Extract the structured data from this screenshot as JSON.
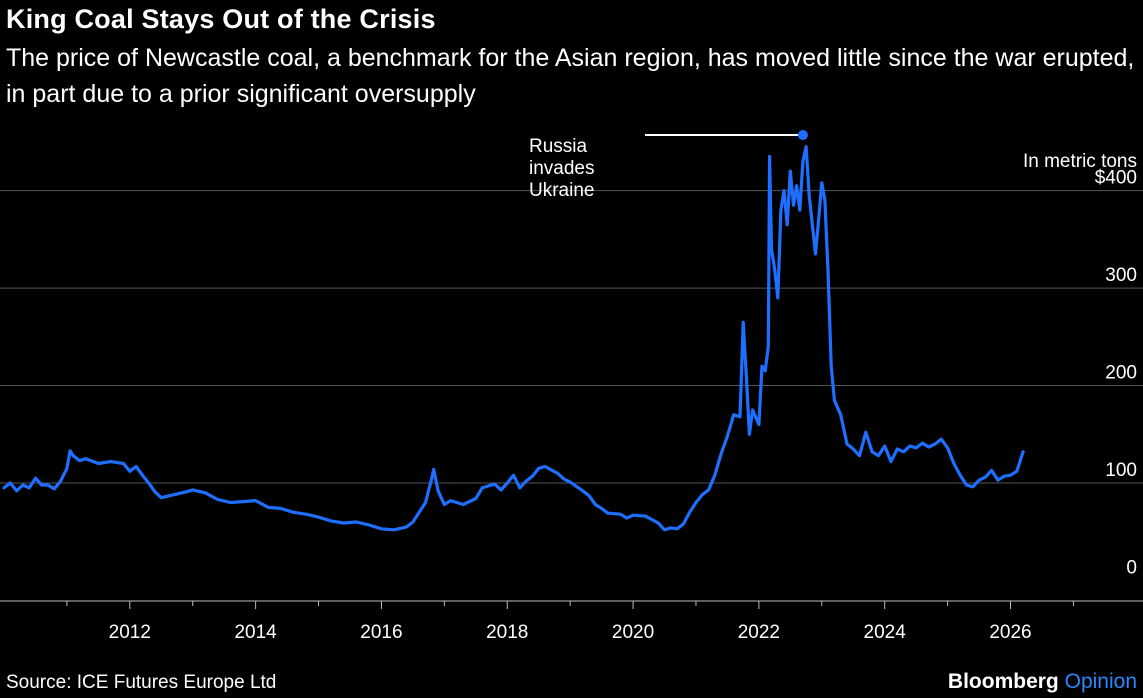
{
  "header": {
    "title": "King Coal Stays Out of the Crisis",
    "subtitle": "The price of Newcastle coal, a benchmark for the Asian region, has moved little since the war erupted, in part due to a prior significant oversupply"
  },
  "footer": {
    "source": "Source: ICE Futures Europe Ltd",
    "brand": "Bloomberg",
    "brand_suffix": "Opinion"
  },
  "colors": {
    "background": "#000000",
    "line": "#1e6fff",
    "text": "#ffffff",
    "grid": "#555555",
    "brand_accent": "#2b87ff"
  },
  "chart_data": {
    "type": "line",
    "unit_label": "In metric tons",
    "y_ticks": [
      {
        "value": 0,
        "label": "0"
      },
      {
        "value": 100,
        "label": "100"
      },
      {
        "value": 200,
        "label": "200"
      },
      {
        "value": 300,
        "label": "300"
      },
      {
        "value": 400,
        "label": "$400"
      }
    ],
    "x_ticks": [
      "2012",
      "2014",
      "2016",
      "2018",
      "2020",
      "2022",
      "2024",
      "2026"
    ],
    "xlim": [
      2010.0,
      2027.2
    ],
    "ylim": [
      -20,
      455
    ],
    "grid": true,
    "annotation": {
      "lines": [
        "Russia",
        "invades",
        "Ukraine"
      ],
      "x": 2022.7,
      "y": 457
    },
    "series": [
      {
        "points": [
          [
            2010.0,
            95
          ],
          [
            2010.1,
            100
          ],
          [
            2010.2,
            92
          ],
          [
            2010.3,
            98
          ],
          [
            2010.4,
            95
          ],
          [
            2010.5,
            105
          ],
          [
            2010.6,
            98
          ],
          [
            2010.7,
            98
          ],
          [
            2010.8,
            94
          ],
          [
            2010.9,
            102
          ],
          [
            2011.0,
            115
          ],
          [
            2011.05,
            133
          ],
          [
            2011.1,
            128
          ],
          [
            2011.2,
            123
          ],
          [
            2011.3,
            125
          ],
          [
            2011.5,
            120
          ],
          [
            2011.7,
            122
          ],
          [
            2011.9,
            120
          ],
          [
            2012.0,
            112
          ],
          [
            2012.1,
            117
          ],
          [
            2012.2,
            108
          ],
          [
            2012.3,
            100
          ],
          [
            2012.4,
            91
          ],
          [
            2012.5,
            85
          ],
          [
            2012.7,
            88
          ],
          [
            2012.9,
            91
          ],
          [
            2013.0,
            93
          ],
          [
            2013.2,
            90
          ],
          [
            2013.4,
            83
          ],
          [
            2013.6,
            80
          ],
          [
            2013.8,
            81
          ],
          [
            2014.0,
            82
          ],
          [
            2014.2,
            75
          ],
          [
            2014.4,
            74
          ],
          [
            2014.6,
            70
          ],
          [
            2014.8,
            68
          ],
          [
            2015.0,
            65
          ],
          [
            2015.2,
            61
          ],
          [
            2015.4,
            59
          ],
          [
            2015.6,
            60
          ],
          [
            2015.8,
            57
          ],
          [
            2016.0,
            53
          ],
          [
            2016.2,
            52
          ],
          [
            2016.4,
            55
          ],
          [
            2016.5,
            60
          ],
          [
            2016.6,
            70
          ],
          [
            2016.7,
            80
          ],
          [
            2016.8,
            105
          ],
          [
            2016.83,
            114
          ],
          [
            2016.9,
            92
          ],
          [
            2017.0,
            78
          ],
          [
            2017.1,
            82
          ],
          [
            2017.3,
            78
          ],
          [
            2017.5,
            84
          ],
          [
            2017.6,
            95
          ],
          [
            2017.8,
            99
          ],
          [
            2017.9,
            93
          ],
          [
            2018.0,
            100
          ],
          [
            2018.1,
            108
          ],
          [
            2018.2,
            95
          ],
          [
            2018.3,
            102
          ],
          [
            2018.4,
            107
          ],
          [
            2018.5,
            115
          ],
          [
            2018.6,
            117
          ],
          [
            2018.8,
            110
          ],
          [
            2018.9,
            104
          ],
          [
            2019.0,
            101
          ],
          [
            2019.2,
            92
          ],
          [
            2019.3,
            87
          ],
          [
            2019.4,
            78
          ],
          [
            2019.5,
            74
          ],
          [
            2019.6,
            69
          ],
          [
            2019.8,
            68
          ],
          [
            2019.9,
            64
          ],
          [
            2020.0,
            67
          ],
          [
            2020.2,
            66
          ],
          [
            2020.4,
            59
          ],
          [
            2020.5,
            52
          ],
          [
            2020.6,
            54
          ],
          [
            2020.7,
            53
          ],
          [
            2020.8,
            58
          ],
          [
            2020.9,
            70
          ],
          [
            2021.0,
            80
          ],
          [
            2021.1,
            88
          ],
          [
            2021.2,
            93
          ],
          [
            2021.3,
            108
          ],
          [
            2021.4,
            130
          ],
          [
            2021.5,
            148
          ],
          [
            2021.6,
            170
          ],
          [
            2021.7,
            168
          ],
          [
            2021.75,
            265
          ],
          [
            2021.8,
            210
          ],
          [
            2021.85,
            150
          ],
          [
            2021.9,
            175
          ],
          [
            2022.0,
            160
          ],
          [
            2022.05,
            220
          ],
          [
            2022.1,
            215
          ],
          [
            2022.15,
            240
          ],
          [
            2022.17,
            435
          ],
          [
            2022.2,
            340
          ],
          [
            2022.25,
            320
          ],
          [
            2022.3,
            290
          ],
          [
            2022.35,
            380
          ],
          [
            2022.4,
            400
          ],
          [
            2022.45,
            365
          ],
          [
            2022.5,
            420
          ],
          [
            2022.55,
            385
          ],
          [
            2022.6,
            405
          ],
          [
            2022.65,
            380
          ],
          [
            2022.7,
            430
          ],
          [
            2022.75,
            445
          ],
          [
            2022.8,
            395
          ],
          [
            2022.9,
            335
          ],
          [
            2022.95,
            370
          ],
          [
            2023.0,
            408
          ],
          [
            2023.05,
            390
          ],
          [
            2023.1,
            315
          ],
          [
            2023.15,
            220
          ],
          [
            2023.2,
            185
          ],
          [
            2023.3,
            170
          ],
          [
            2023.4,
            140
          ],
          [
            2023.5,
            135
          ],
          [
            2023.6,
            128
          ],
          [
            2023.7,
            152
          ],
          [
            2023.8,
            132
          ],
          [
            2023.9,
            128
          ],
          [
            2024.0,
            138
          ],
          [
            2024.1,
            122
          ],
          [
            2024.2,
            135
          ],
          [
            2024.3,
            132
          ],
          [
            2024.4,
            138
          ],
          [
            2024.5,
            136
          ],
          [
            2024.6,
            141
          ],
          [
            2024.7,
            137
          ],
          [
            2024.8,
            140
          ],
          [
            2024.9,
            145
          ],
          [
            2025.0,
            136
          ],
          [
            2025.1,
            120
          ],
          [
            2025.2,
            108
          ],
          [
            2025.3,
            98
          ],
          [
            2025.4,
            96
          ],
          [
            2025.5,
            103
          ],
          [
            2025.6,
            106
          ],
          [
            2025.7,
            113
          ],
          [
            2025.8,
            103
          ],
          [
            2025.9,
            107
          ],
          [
            2026.0,
            108
          ],
          [
            2026.1,
            112
          ],
          [
            2026.2,
            132
          ]
        ]
      }
    ]
  }
}
